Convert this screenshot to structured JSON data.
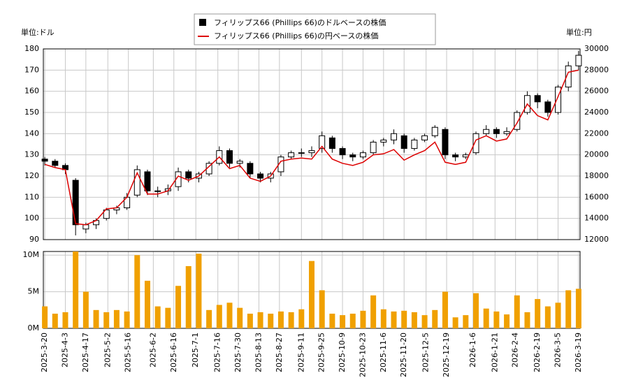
{
  "chart_data": [
    {
      "type": "candlestick",
      "legend": [
        "フィリップス66 (Phillips 66)のドルベースの株価",
        "フィリップス66 (Phillips 66)の円ベースの株価"
      ],
      "y_unit": "単位:ドル",
      "y2_unit": "単位:円",
      "x": [
        "2025-3-20",
        "2025-3-27",
        "2025-4-3",
        "2025-4-10",
        "2025-4-17",
        "2025-4-24",
        "2025-5-1",
        "2025-5-8",
        "2025-5-15",
        "2025-5-22",
        "2025-5-29",
        "2025-6-5",
        "2025-6-12",
        "2025-6-19",
        "2025-6-26",
        "2025-7-3",
        "2025-7-10",
        "2025-7-17",
        "2025-7-24",
        "2025-7-31",
        "2025-8-7",
        "2025-8-14",
        "2025-8-21",
        "2025-8-28",
        "2025-9-4",
        "2025-9-11",
        "2025-9-18",
        "2025-9-25",
        "2025-10-2",
        "2025-10-9",
        "2025-10-16",
        "2025-10-23",
        "2025-10-30",
        "2025-11-6",
        "2025-11-13",
        "2025-11-20",
        "2025-11-27",
        "2025-12-4",
        "2025-12-11",
        "2025-12-18",
        "2025-12-25",
        "2026-1-1",
        "2026-1-8",
        "2026-1-15",
        "2026-1-22",
        "2026-1-29",
        "2026-2-5",
        "2026-2-12",
        "2026-2-19",
        "2026-2-26",
        "2026-3-5",
        "2026-3-12",
        "2026-3-19"
      ],
      "xlim": [
        "2025-3-19",
        "2026-3-20"
      ],
      "open": [
        128,
        127,
        125,
        118,
        95,
        97,
        100,
        104,
        105,
        111,
        122,
        113,
        113,
        115,
        122,
        119,
        121,
        126,
        132,
        126,
        126,
        121,
        119,
        122,
        129,
        131,
        131,
        133,
        138,
        133,
        130,
        129,
        131,
        136,
        137,
        139,
        133,
        137,
        139,
        142,
        130,
        129,
        131,
        140,
        142,
        140,
        142,
        150,
        158,
        155,
        150,
        162,
        172
      ],
      "high": [
        129,
        128,
        126,
        119,
        98,
        100,
        105,
        106,
        112,
        125,
        123,
        115,
        116,
        124,
        123,
        122,
        127,
        134,
        133,
        128,
        127,
        122,
        122,
        130,
        132,
        133,
        134,
        141,
        139,
        134,
        131,
        132,
        137,
        138,
        142,
        140,
        138,
        140,
        144,
        143,
        131,
        131,
        141,
        144,
        143,
        143,
        151,
        160,
        159,
        156,
        163,
        174,
        179
      ],
      "low": [
        125,
        124,
        121,
        92,
        93,
        95,
        99,
        102,
        104,
        110,
        111,
        110,
        111,
        113,
        117,
        117,
        120,
        125,
        124,
        124,
        119,
        117,
        117,
        120,
        128,
        129,
        129,
        131,
        131,
        128,
        127,
        128,
        130,
        134,
        135,
        131,
        132,
        136,
        138,
        128,
        127,
        128,
        130,
        139,
        138,
        139,
        141,
        149,
        152,
        148,
        149,
        160,
        170
      ],
      "close": [
        127,
        125,
        123,
        97,
        97,
        99,
        104,
        105,
        110,
        123,
        113,
        113,
        114,
        122,
        119,
        121,
        126,
        132,
        126,
        127,
        121,
        119,
        121,
        129,
        131,
        131,
        132,
        139,
        133,
        130,
        129,
        131,
        136,
        137,
        140,
        133,
        137,
        139,
        143,
        130,
        129,
        130,
        140,
        142,
        140,
        141,
        150,
        158,
        155,
        150,
        162,
        172,
        177
      ],
      "up_color": "#ffffff",
      "down_color": "#000000",
      "series": [
        {
          "name": "フィリップス66 (Phillips 66)の円ベースの株価",
          "color": "#dd0000",
          "axis": "y2",
          "values": [
            19100,
            18800,
            18600,
            13500,
            13400,
            13800,
            14900,
            15000,
            16000,
            18300,
            16300,
            16300,
            16600,
            18000,
            17600,
            18000,
            18900,
            19800,
            18700,
            19000,
            17800,
            17500,
            18000,
            19400,
            19600,
            19700,
            19600,
            20800,
            19600,
            19200,
            19000,
            19300,
            20000,
            20100,
            20500,
            19500,
            20000,
            20400,
            21200,
            19300,
            19100,
            19300,
            21400,
            21800,
            21300,
            21500,
            23000,
            24800,
            23700,
            23300,
            25500,
            27800,
            28000
          ]
        }
      ],
      "ylim": [
        90,
        180
      ],
      "yticks": [
        90,
        100,
        110,
        120,
        130,
        140,
        150,
        160,
        170,
        180
      ],
      "y2lim": [
        12000,
        30000
      ],
      "y2ticks": [
        12000,
        14000,
        16000,
        18000,
        20000,
        22000,
        24000,
        26000,
        28000,
        30000
      ],
      "grid": true
    },
    {
      "type": "bar",
      "color": "#f0a000",
      "values": [
        3000000,
        2000000,
        2200000,
        10500000,
        5000000,
        2500000,
        2200000,
        2500000,
        2300000,
        10000000,
        6500000,
        3000000,
        2800000,
        5800000,
        8500000,
        10200000,
        2500000,
        3200000,
        3500000,
        2800000,
        2000000,
        2200000,
        2000000,
        2300000,
        2200000,
        2600000,
        9200000,
        5200000,
        2000000,
        1800000,
        2000000,
        2400000,
        4500000,
        2600000,
        2300000,
        2400000,
        2200000,
        1800000,
        2500000,
        5000000,
        1500000,
        1800000,
        4800000,
        2700000,
        2300000,
        1900000,
        4500000,
        2200000,
        4000000,
        3000000,
        3500000,
        5200000,
        5400000
      ],
      "ylim": [
        0,
        10500000
      ],
      "yticks": [
        {
          "value": 0,
          "label": "0M"
        },
        {
          "value": 5000000,
          "label": "5M"
        },
        {
          "value": 10000000,
          "label": "10M"
        }
      ],
      "xticks": [
        "2025-3-20",
        "2025-4-3",
        "2025-4-17",
        "2025-5-2",
        "2025-5-16",
        "2025-6-2",
        "2025-6-16",
        "2025-7-1",
        "2025-7-16",
        "2025-7-30",
        "2025-8-13",
        "2025-8-27",
        "2025-9-11",
        "2025-9-25",
        "2025-10-9",
        "2025-10-23",
        "2025-11-6",
        "2025-11-20",
        "2025-12-5",
        "2025-12-19",
        "2026-1-6",
        "2026-1-21",
        "2026-2-4",
        "2026-2-19",
        "2026-3-5",
        "2026-3-19"
      ],
      "grid": true
    }
  ]
}
